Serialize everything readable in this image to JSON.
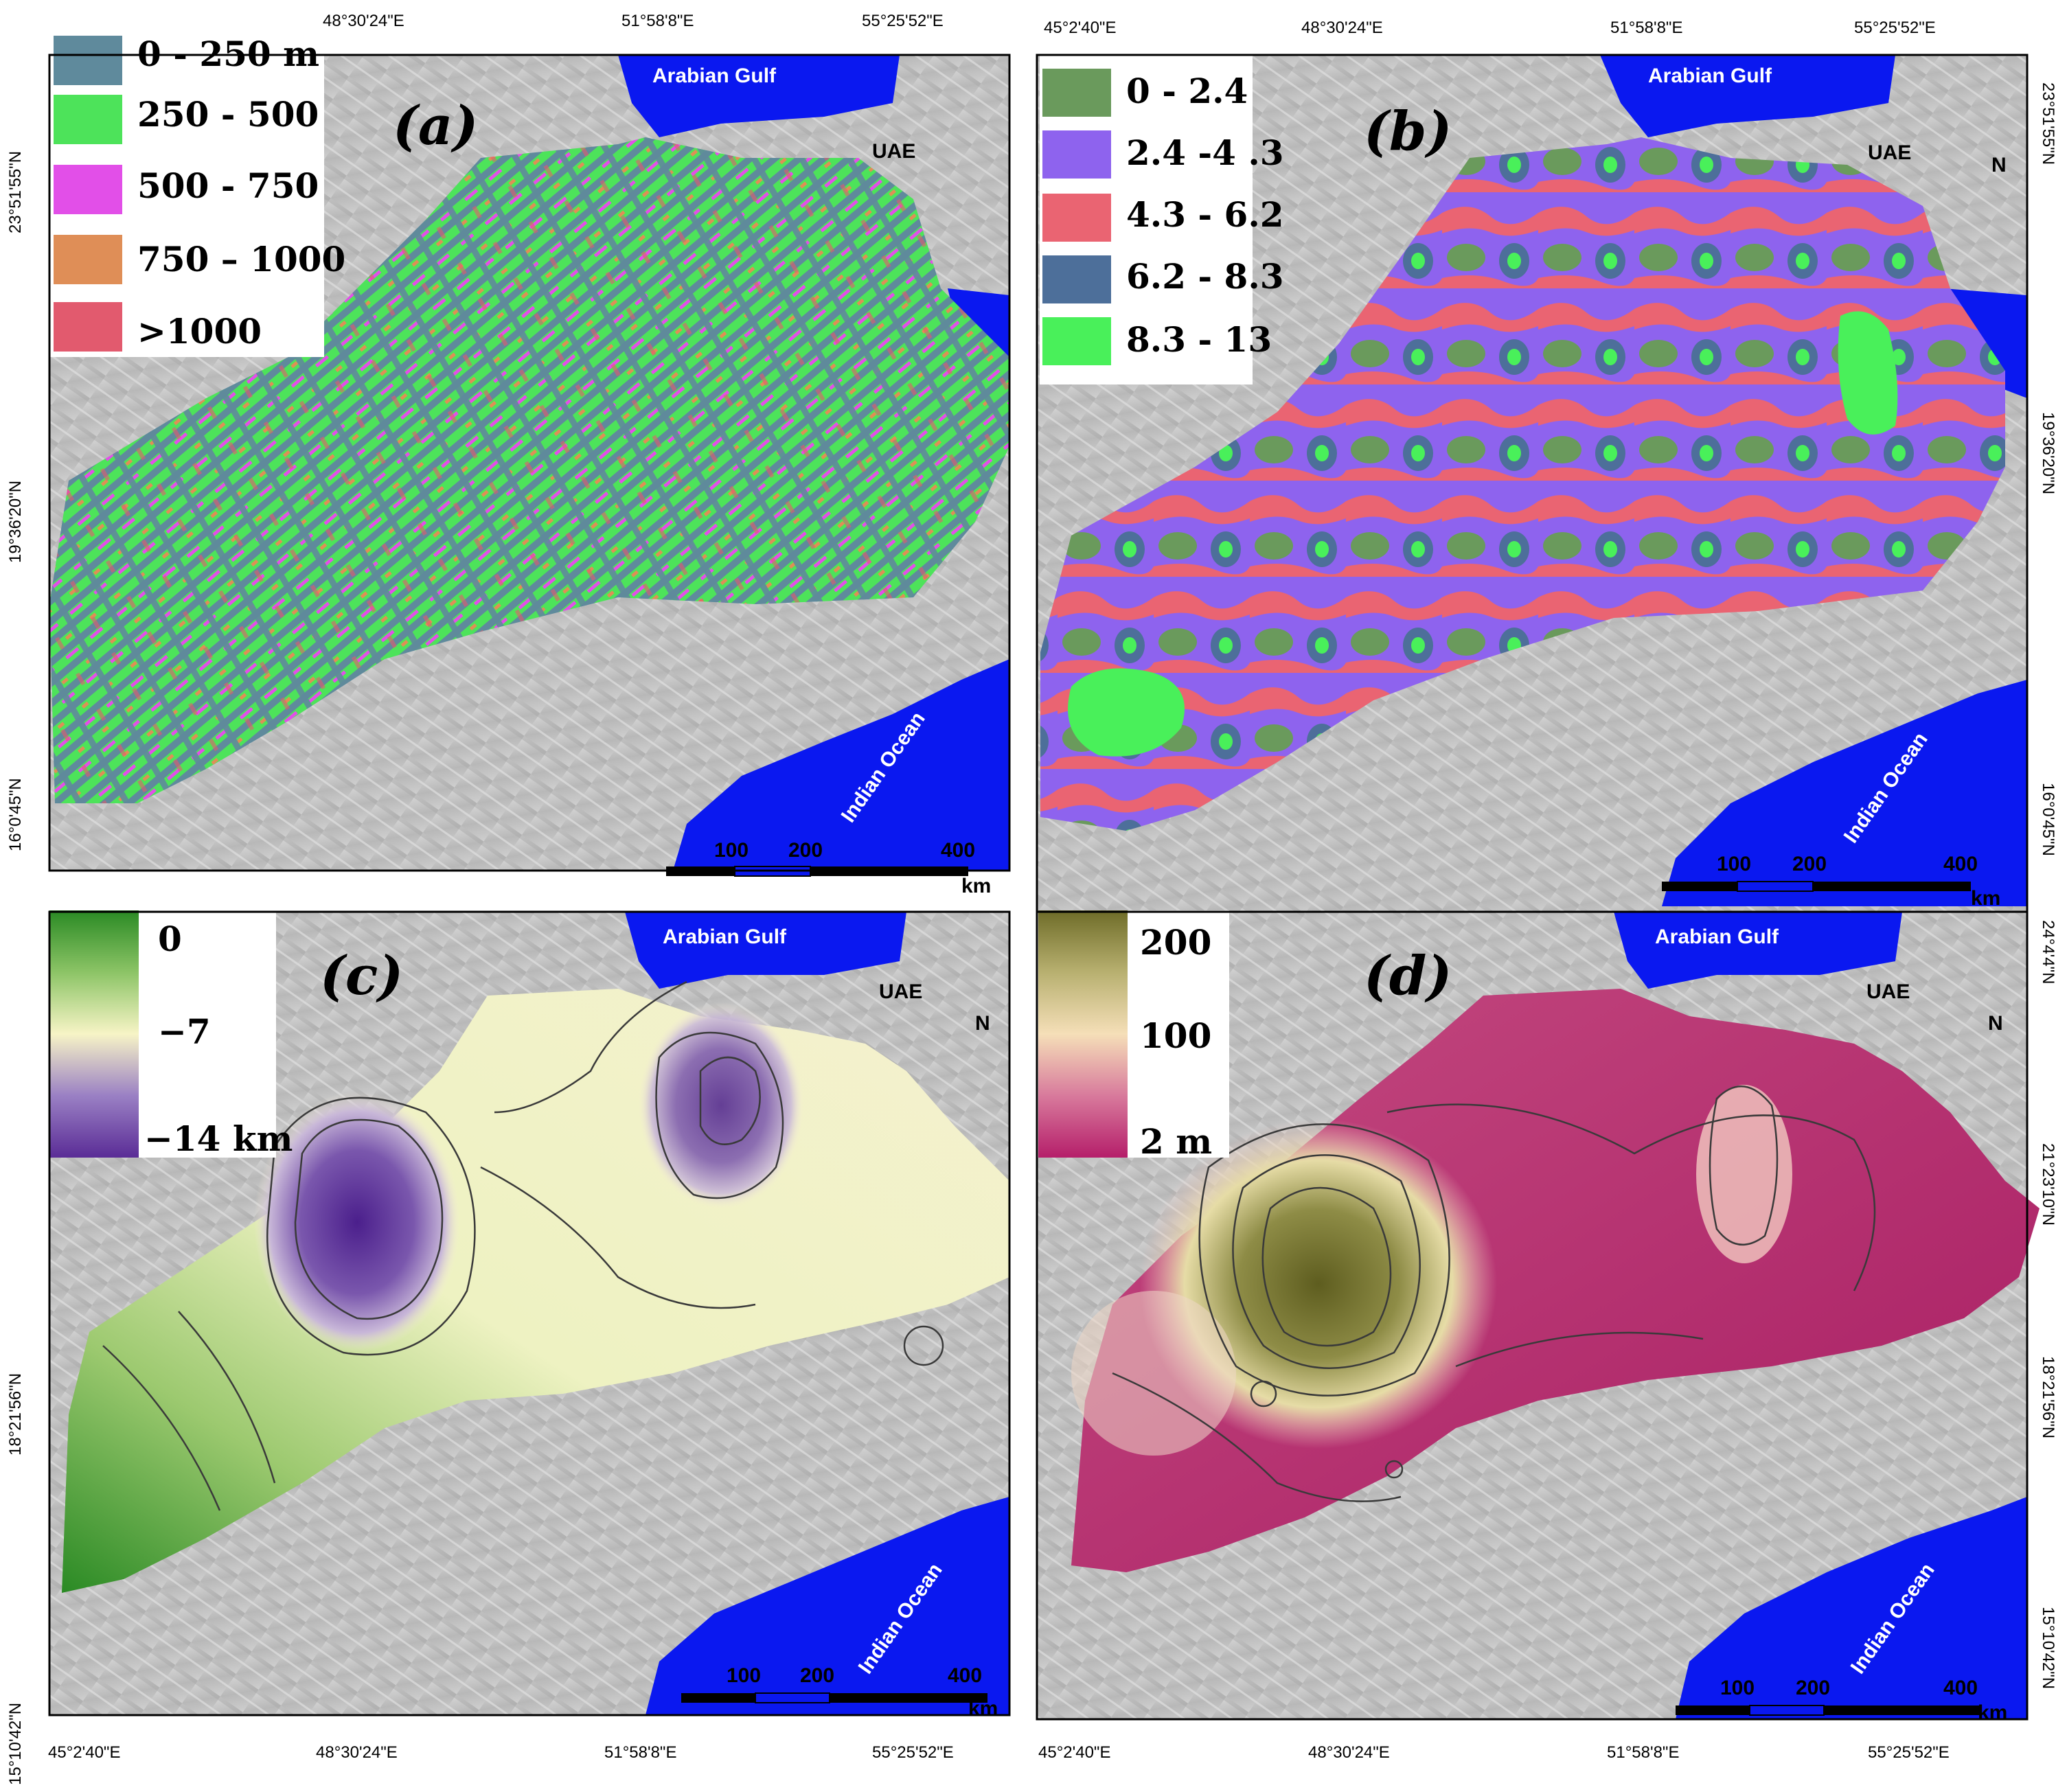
{
  "panels": {
    "a": {
      "label": "(a)",
      "legend": [
        {
          "text": "0 - 250 m",
          "color": "#5f8a9c"
        },
        {
          "text": "250 - 500",
          "color": "#4de35a"
        },
        {
          "text": "500 - 750",
          "color": "#e24fe8"
        },
        {
          "text": "750 – 1000",
          "color": "#df8e57"
        },
        {
          "text": ">1000",
          "color": "#e25a6e"
        }
      ]
    },
    "b": {
      "label": "(b)",
      "legend": [
        {
          "text": "0 - 2.4",
          "color": "#6a9a5c"
        },
        {
          "text": "2.4 -4 .3",
          "color": "#8e63ee"
        },
        {
          "text": "4.3 - 6.2",
          "color": "#ea6472"
        },
        {
          "text": "6.2 - 8.3",
          "color": "#4d6f9a"
        },
        {
          "text": "8.3 - 13",
          "color": "#49f05a"
        }
      ]
    },
    "c": {
      "label": "(c)",
      "colorbar": {
        "top": "0",
        "mid": "−7",
        "bottom": "−14 km",
        "colors": [
          "#2a8a24",
          "#f7f4c6",
          "#5a2c96"
        ]
      }
    },
    "d": {
      "label": "(d)",
      "colorbar": {
        "top": "200",
        "mid": "100",
        "bottom": "2 m",
        "colors": [
          "#6e6c28",
          "#f5dfb8",
          "#b51e6a"
        ]
      }
    }
  },
  "geo_labels": {
    "gulf": "Arabian Gulf",
    "uae": "UAE",
    "ocean": "Indian Ocean",
    "north": "N"
  },
  "scale_bar": {
    "ticks": [
      "100",
      "200",
      "400"
    ],
    "unit": "km"
  },
  "coords": {
    "top_a": [
      "45°2'40\"E",
      "48°30'24\"E",
      "51°58'8\"E",
      "55°25'52\"E"
    ],
    "bottom": [
      "45°2'40\"E",
      "48°30'24\"E",
      "51°58'8\"E",
      "55°25'52\"E"
    ],
    "lat_ab": [
      "23°51'55\"N",
      "19°36'20\"N",
      "16°0'45\"N"
    ],
    "lat_cd": [
      "24°4'4\"N",
      "21°23'10\"N",
      "18°21'56\"N",
      "15°10'42\"N"
    ]
  },
  "colors": {
    "sea": "#0a18f0",
    "terrain": "#bdbdbd",
    "contour": "#3a3a3a"
  }
}
